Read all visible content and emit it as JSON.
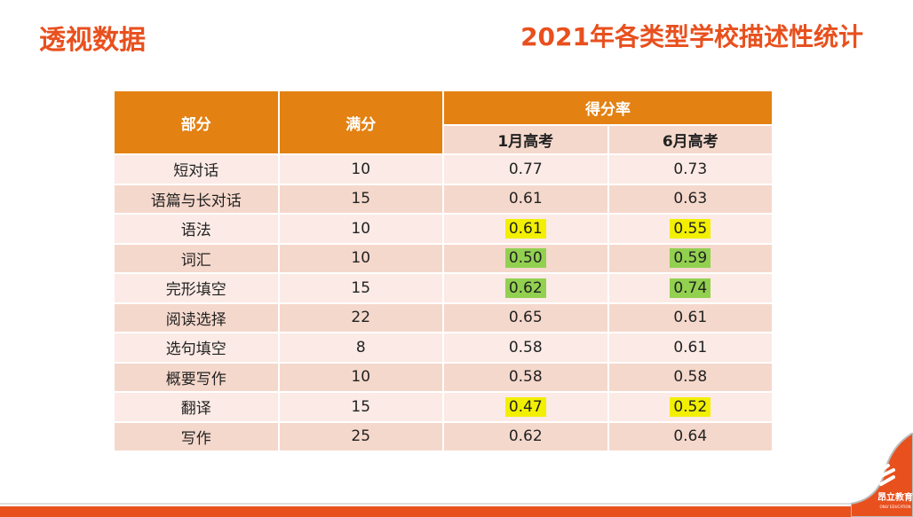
{
  "header": {
    "title": "透视数据",
    "subtitle": "2021年各类型学校描述性统计"
  },
  "table": {
    "headers": {
      "part": "部分",
      "full": "满分",
      "rate": "得分率",
      "jan": "1月高考",
      "jun": "6月高考"
    },
    "rows": [
      {
        "part": "短对话",
        "full": "10",
        "jan": "0.77",
        "jun": "0.73",
        "hl": ""
      },
      {
        "part": "语篇与长对话",
        "full": "15",
        "jan": "0.61",
        "jun": "0.63",
        "hl": ""
      },
      {
        "part": "语法",
        "full": "10",
        "jan": "0.61",
        "jun": "0.55",
        "hl": "#f2f000"
      },
      {
        "part": "词汇",
        "full": "10",
        "jan": "0.50",
        "jun": "0.59",
        "hl": "#92d050"
      },
      {
        "part": "完形填空",
        "full": "15",
        "jan": "0.62",
        "jun": "0.74",
        "hl": "#92d050"
      },
      {
        "part": "阅读选择",
        "full": "22",
        "jan": "0.65",
        "jun": "0.61",
        "hl": ""
      },
      {
        "part": "选句填空",
        "full": "8",
        "jan": "0.58",
        "jun": "0.61",
        "hl": ""
      },
      {
        "part": "概要写作",
        "full": "10",
        "jan": "0.58",
        "jun": "0.58",
        "hl": ""
      },
      {
        "part": "翻译",
        "full": "15",
        "jan": "0.47",
        "jun": "0.52",
        "hl": "#f2f000"
      },
      {
        "part": "写作",
        "full": "25",
        "jan": "0.62",
        "jun": "0.64",
        "hl": ""
      }
    ]
  },
  "logo": {
    "text": "昂立教育",
    "sub": "ONLY EDUCATION"
  },
  "colors": {
    "accent": "#e8501e",
    "header": "#e38112"
  }
}
